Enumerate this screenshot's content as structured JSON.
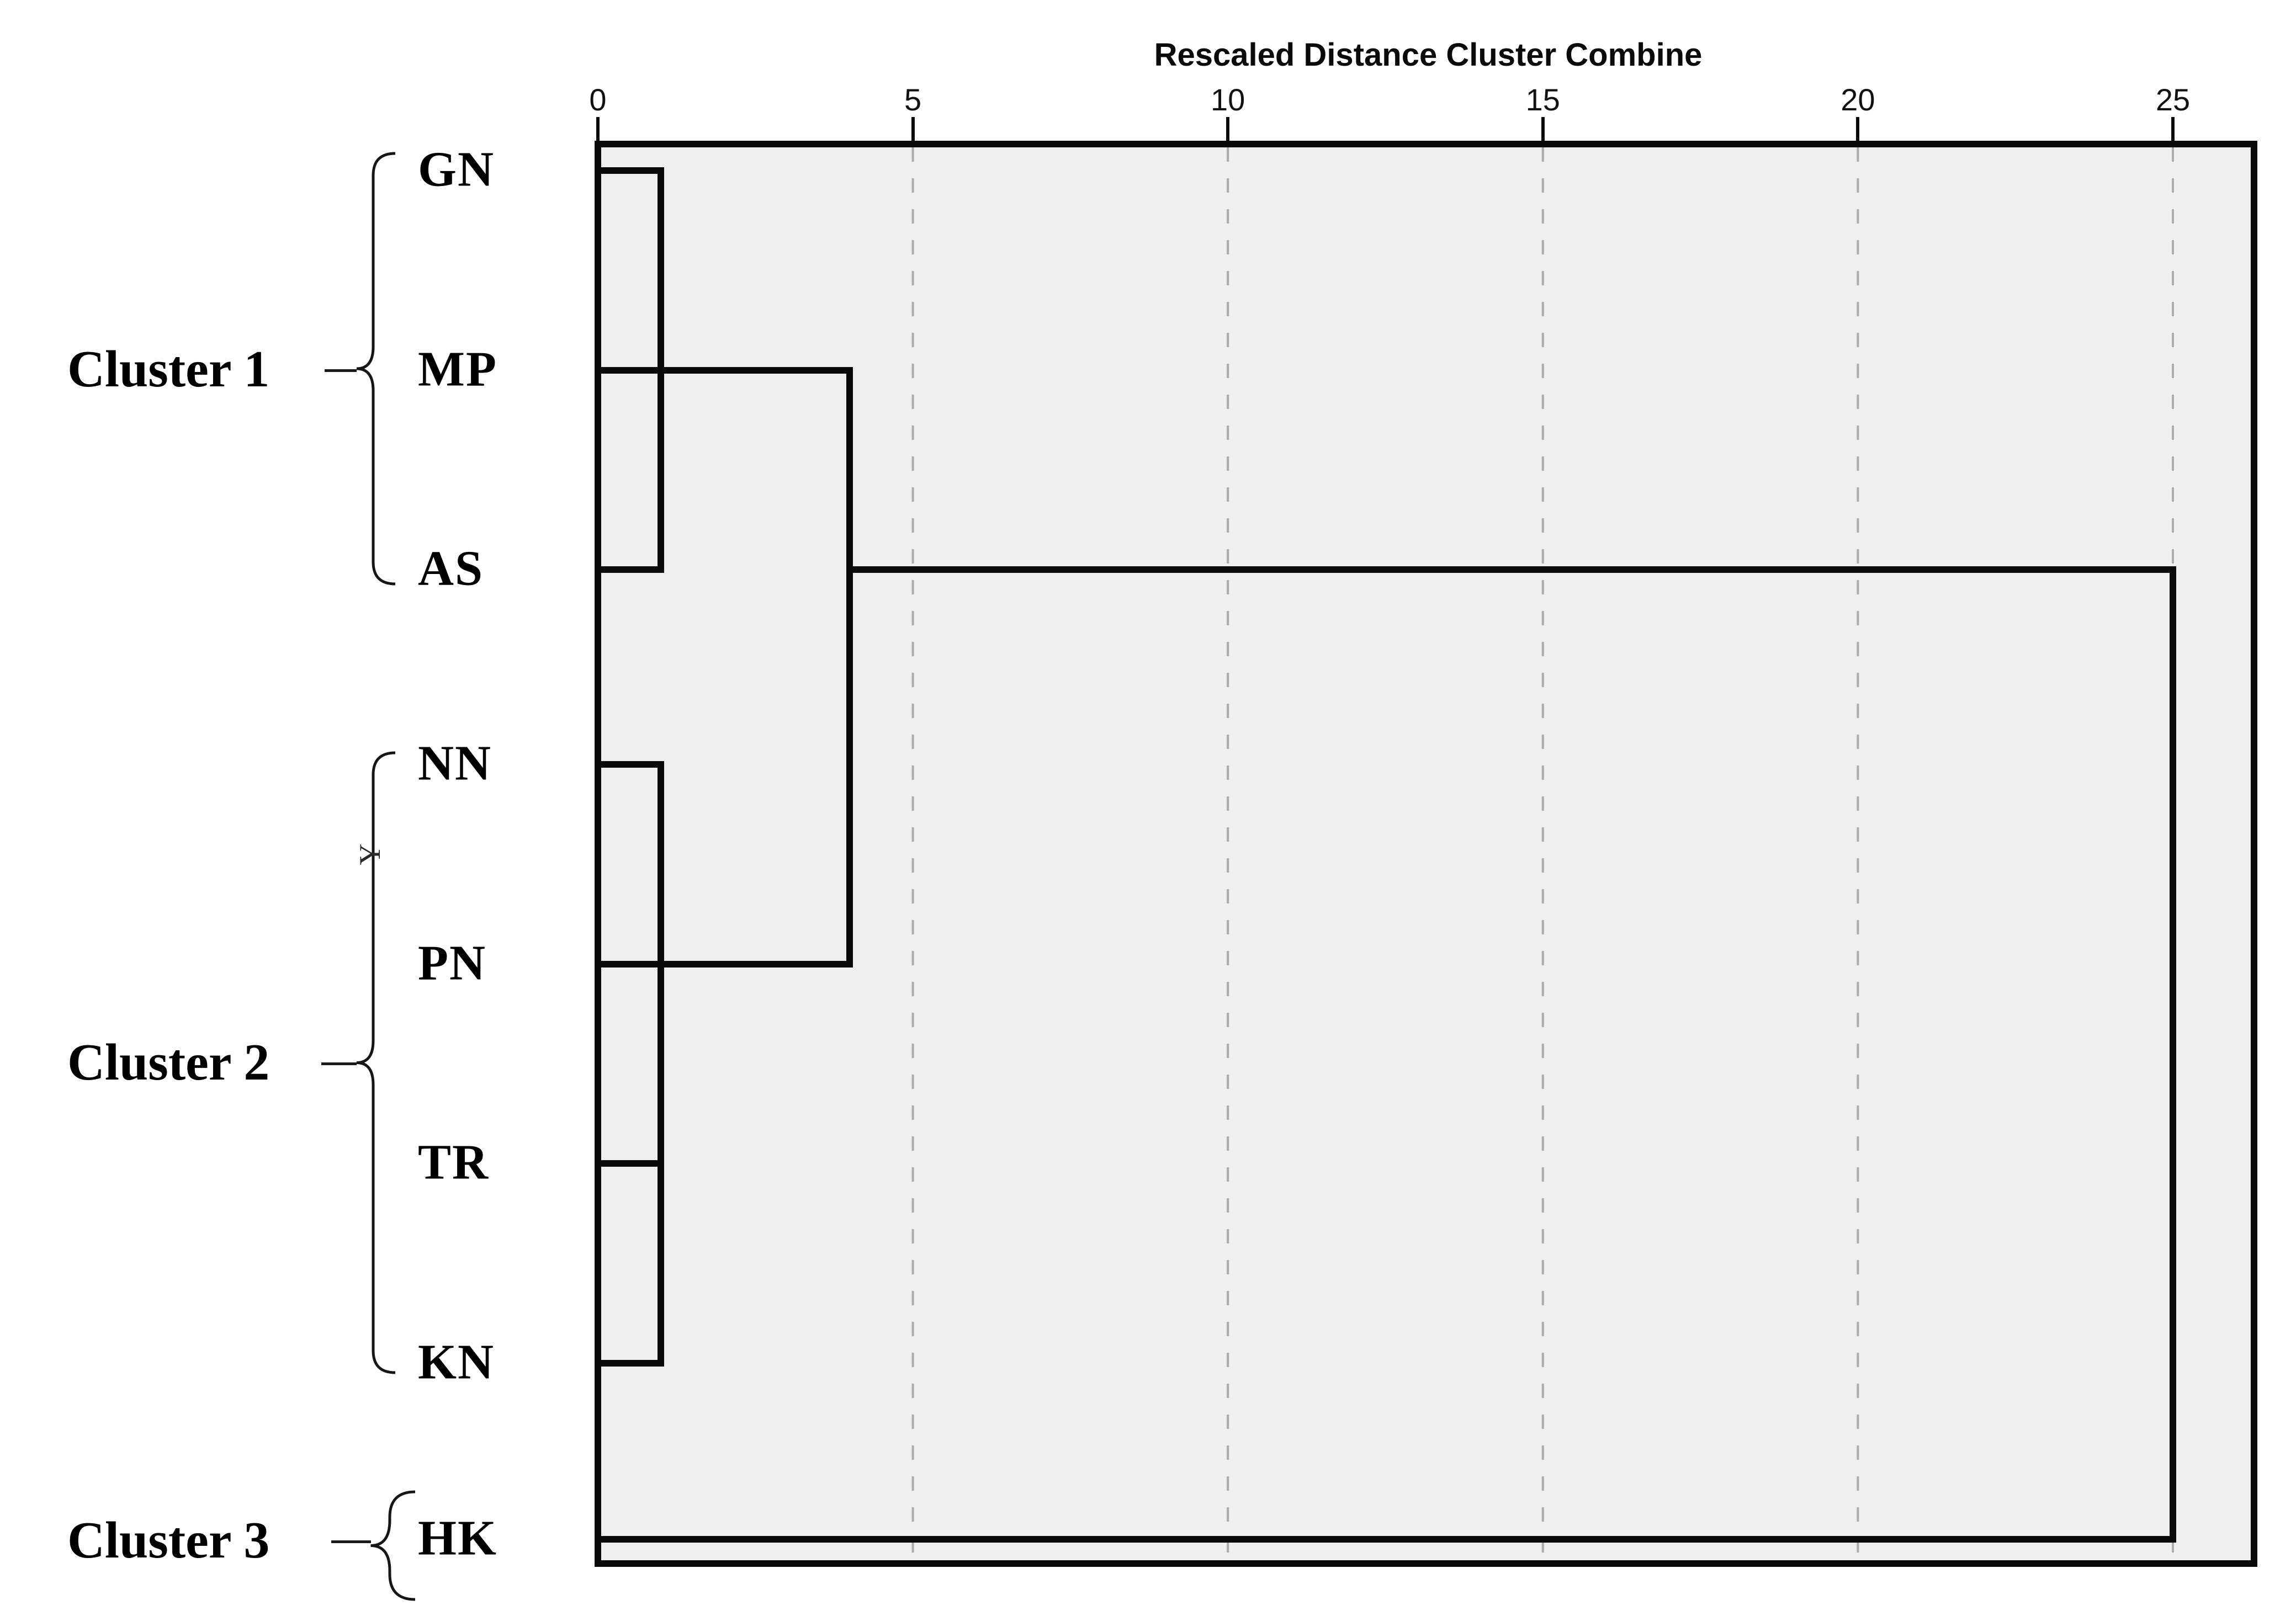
{
  "title": "Rescaled Distance Cluster Combine",
  "axis": {
    "position": "top",
    "ticks": [
      "0",
      "5",
      "10",
      "15",
      "20",
      "25"
    ],
    "tick_values": [
      0,
      5,
      10,
      15,
      20,
      25
    ],
    "range": [
      0,
      25
    ]
  },
  "leaf_labels": [
    "GN",
    "MP",
    "AS",
    "NN",
    "PN",
    "TR",
    "KN",
    "HK"
  ],
  "clusters": [
    {
      "label": "Cluster 1",
      "members": [
        "GN",
        "MP",
        "AS"
      ],
      "span_from": "GN",
      "span_to": "AS"
    },
    {
      "label": "Cluster 2",
      "members": [
        "NN",
        "PN",
        "TR",
        "KN"
      ],
      "span_from": "NN",
      "span_to": "KN"
    },
    {
      "label": "Cluster 3",
      "members": [
        "HK"
      ],
      "span_from": "HK",
      "span_to": "HK"
    }
  ],
  "stray_glyph": "Y",
  "colors": {
    "line": "#0a0a0a",
    "plot_background": "#efefef",
    "page_background": "#ffffff",
    "grid_dashed": "#ababab",
    "text": "#000000"
  },
  "chart_data": {
    "type": "dendrogram",
    "title": "Rescaled Distance Cluster Combine",
    "orientation": "horizontal, leaves on left, distance increasing to the right",
    "x_axis": {
      "label": "Rescaled Distance Cluster Combine",
      "ticks": [
        0,
        5,
        10,
        15,
        20,
        25
      ],
      "range": [
        0,
        25
      ],
      "position": "top"
    },
    "grid": {
      "dashed_vertical_at": [
        5,
        10,
        15,
        20,
        25
      ],
      "style": "dashed light gray"
    },
    "leaves_top_to_bottom": [
      "GN",
      "MP",
      "AS",
      "NN",
      "PN",
      "TR",
      "KN",
      "HK"
    ],
    "merges": [
      {
        "members": [
          "GN",
          "MP",
          "AS"
        ],
        "distance": 1,
        "note": "single vertical link spanning GN to AS at rescaled distance 1"
      },
      {
        "members": [
          "NN",
          "PN",
          "TR",
          "KN"
        ],
        "distance": 1,
        "note": "single vertical link spanning NN to KN at rescaled distance 1"
      },
      {
        "members": [
          "Cluster 1",
          "Cluster 2"
        ],
        "distance": 4,
        "note": "vertical link from MP row to PN row at rescaled distance 4"
      },
      {
        "members": [
          "Cluster 1+2",
          "HK"
        ],
        "distance": 25,
        "note": "vertical link from AS row to HK row at rescaled distance 25"
      }
    ],
    "segments": [
      {
        "type": "h",
        "row": "GN",
        "from": 0,
        "to": 1
      },
      {
        "type": "h",
        "row": "MP",
        "from": 0,
        "to": 4
      },
      {
        "type": "h",
        "row": "AS",
        "from": 0,
        "to": 1
      },
      {
        "type": "h",
        "row": "AS",
        "from": 4,
        "to": 25
      },
      {
        "type": "h",
        "row": "NN",
        "from": 0,
        "to": 1
      },
      {
        "type": "h",
        "row": "PN",
        "from": 0,
        "to": 4
      },
      {
        "type": "h",
        "row": "TR",
        "from": 0,
        "to": 1
      },
      {
        "type": "h",
        "row": "KN",
        "from": 0,
        "to": 1
      },
      {
        "type": "h",
        "row": "HK",
        "from": 0,
        "to": 25
      },
      {
        "type": "v",
        "x": 1,
        "fromRow": "GN",
        "toRow": "AS"
      },
      {
        "type": "v",
        "x": 1,
        "fromRow": "NN",
        "toRow": "KN"
      },
      {
        "type": "v",
        "x": 4,
        "fromRow": "MP",
        "toRow": "PN"
      },
      {
        "type": "v",
        "x": 25,
        "fromRow": "AS",
        "toRow": "HK"
      }
    ],
    "cluster_annotations": [
      {
        "name": "Cluster 1",
        "members": [
          "GN",
          "MP",
          "AS"
        ]
      },
      {
        "name": "Cluster 2",
        "members": [
          "NN",
          "PN",
          "TR",
          "KN"
        ]
      },
      {
        "name": "Cluster 3",
        "members": [
          "HK"
        ]
      }
    ]
  }
}
